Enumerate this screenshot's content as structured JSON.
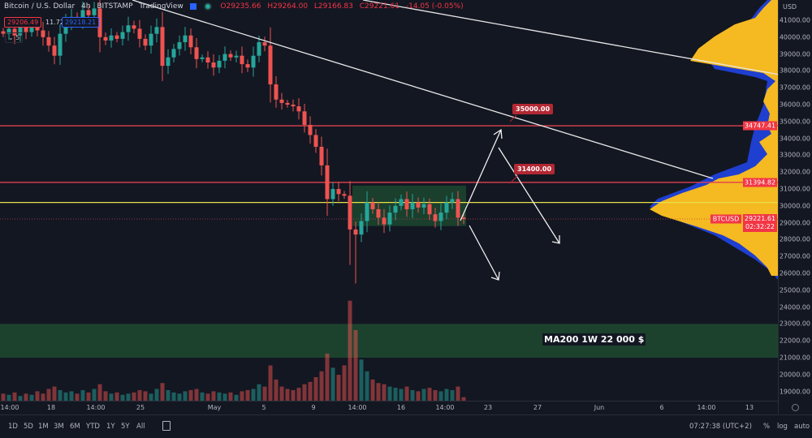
{
  "header": {
    "symbol": "Bitcoin / U.S. Dollar",
    "interval": "4h",
    "exchange": "BITSTAMP",
    "source": "TradingView",
    "ohlc": {
      "open": "O29235.66",
      "high": "H29264.00",
      "low": "L29166.83",
      "close": "C29221.61",
      "change": "-14.05 (-0.05%)"
    },
    "bid": "29206.49",
    "spread": "11.72",
    "ask": "29218.21",
    "indicators_collapsed_count": "5"
  },
  "price_axis": {
    "currency": "USD",
    "ticks": [
      "41000.00",
      "40000.00",
      "39000.00",
      "38000.00",
      "37000.00",
      "36000.00",
      "35000.00",
      "34000.00",
      "33000.00",
      "32000.00",
      "31000.00",
      "30000.00",
      "29000.00",
      "28000.00",
      "27000.00",
      "26000.00",
      "25000.00",
      "24000.00",
      "23000.00",
      "22000.00",
      "21000.00",
      "20000.00",
      "19000.00"
    ],
    "labels": [
      {
        "text": "34747.41",
        "price": 34747.41
      },
      {
        "text": "31394.82",
        "price": 31394.82
      },
      {
        "symbol": "BTCUSD",
        "text": "29221.61",
        "countdown": "02:32:22",
        "price": 29221.61
      }
    ]
  },
  "time_axis": {
    "ticks": [
      "14:00",
      "18",
      "14:00",
      "25",
      "May",
      "5",
      "9",
      "14:00",
      "16",
      "14:00",
      "23",
      "27",
      "Jun",
      "6",
      "14:00",
      "13"
    ]
  },
  "bottom_bar": {
    "ranges": [
      "1D",
      "5D",
      "1M",
      "3M",
      "6M",
      "YTD",
      "1Y",
      "5Y",
      "All"
    ],
    "time": "07:27:38 (UTC+2)",
    "percent": "%",
    "log": "log",
    "auto": "auto"
  },
  "annotations": {
    "target_up": "35000.00",
    "target_mid": "31400.00",
    "ma_zone": "MA200 1W 22 000 $"
  },
  "colors": {
    "background": "#131722",
    "up": "#26a69a",
    "down": "#ef5350",
    "level_red": "#e0404f",
    "level_yellow": "#e8e14a",
    "zone_green": "#1e4a30",
    "profile_blue": "#1e3fd0",
    "profile_gold": "#f5b921"
  },
  "chart_data": {
    "type": "candlestick",
    "title": "Bitcoin / U.S. Dollar, 4h, BITSTAMP",
    "ylabel": "USD",
    "ylim": [
      18500,
      41900
    ],
    "grid": false,
    "closes": [
      40200,
      40500,
      40100,
      40600,
      40300,
      40700,
      40400,
      40000,
      39500,
      38900,
      40200,
      40900,
      41200,
      41000,
      41600,
      41300,
      41700,
      40000,
      39800,
      40100,
      39900,
      40300,
      40700,
      40500,
      39900,
      39500,
      40200,
      40600,
      38300,
      38800,
      39300,
      39700,
      40100,
      39400,
      38700,
      38800,
      38500,
      38200,
      38600,
      39000,
      38800,
      38900,
      38400,
      38200,
      38900,
      39700,
      39500,
      37200,
      36300,
      36100,
      36000,
      35900,
      35600,
      34800,
      34200,
      33500,
      32400,
      30400,
      31000,
      30700,
      30600,
      28600,
      28300,
      29100,
      30200,
      29800,
      29300,
      28900,
      29600,
      30000,
      30400,
      29800,
      30200,
      29900,
      30100,
      29500,
      29100,
      29600,
      30200,
      30400,
      29300,
      29221.61
    ],
    "volume_relative": [
      6,
      5,
      7,
      4,
      6,
      5,
      8,
      6,
      10,
      12,
      9,
      7,
      8,
      6,
      9,
      7,
      10,
      14,
      8,
      6,
      7,
      5,
      6,
      7,
      9,
      8,
      6,
      10,
      15,
      9,
      7,
      6,
      8,
      9,
      10,
      7,
      6,
      8,
      7,
      6,
      7,
      5,
      8,
      9,
      10,
      14,
      12,
      30,
      18,
      12,
      10,
      9,
      11,
      14,
      16,
      20,
      25,
      40,
      28,
      22,
      30,
      85,
      60,
      35,
      25,
      18,
      15,
      14,
      12,
      11,
      10,
      12,
      9,
      8,
      10,
      11,
      9,
      8,
      10,
      9,
      12,
      3
    ],
    "horizontal_levels": [
      {
        "price": 34747.41,
        "color": "red"
      },
      {
        "price": 31394.82,
        "color": "red"
      },
      {
        "price": 30200,
        "color": "yellow"
      },
      {
        "price": 29221.61,
        "style": "dotted"
      }
    ],
    "range_box": {
      "top": 31200,
      "bottom": 28800
    },
    "ma200_zone": {
      "top": 23000,
      "bottom": 21000
    },
    "scenario_targets": [
      35000,
      31400
    ]
  }
}
